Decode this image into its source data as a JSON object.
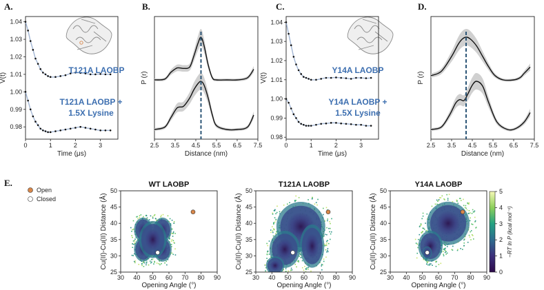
{
  "panel_labels": [
    "A.",
    "B.",
    "C.",
    "D.",
    "E."
  ],
  "colors": {
    "text_blue": "#3d6fb0",
    "dashed": "#2b5576",
    "fit_line": "#111111",
    "band": "#d0d0d0",
    "open_marker": "#d8874a",
    "closed_marker": "#ffffff"
  },
  "legend": {
    "open": "Open",
    "closed": "Closed"
  },
  "colorbar": {
    "label": "−RT ln P (kcal mol⁻¹)",
    "ticks": [
      "0",
      "1",
      "2",
      "3",
      "4",
      "5"
    ],
    "range": [
      0,
      5
    ]
  },
  "chart_data": [
    {
      "id": "A",
      "type": "line",
      "xlabel": "Time (μs)",
      "ylabel": "V(t)",
      "xticks": [
        "0",
        "1",
        "2",
        "3"
      ],
      "yticks": [
        "0.98",
        "0.99",
        "1.00",
        "1.01",
        "1.02",
        "1.03",
        "1.04"
      ],
      "xlim": [
        0,
        3.7
      ],
      "ylim": [
        0.973,
        1.043
      ],
      "series": [
        {
          "name": "T121A LAOBP",
          "x": [
            0,
            0.1,
            0.2,
            0.3,
            0.4,
            0.5,
            0.6,
            0.7,
            0.8,
            0.9,
            1.0,
            1.2,
            1.4,
            1.6,
            1.8,
            2.0,
            2.2,
            2.4,
            2.6,
            2.8,
            3.0,
            3.2,
            3.4
          ],
          "y": [
            1.04,
            1.035,
            1.029,
            1.024,
            1.019,
            1.016,
            1.013,
            1.011,
            1.01,
            1.009,
            1.0085,
            1.0085,
            1.009,
            1.0095,
            1.0105,
            1.011,
            1.0108,
            1.0105,
            1.01,
            1.01,
            1.0102,
            1.01,
            1.01
          ]
        },
        {
          "name": "T121A LAOBP + 1.5X Lysine",
          "x": [
            0,
            0.1,
            0.2,
            0.3,
            0.4,
            0.5,
            0.6,
            0.7,
            0.8,
            0.9,
            1.0,
            1.2,
            1.4,
            1.6,
            1.8,
            2.0,
            2.2,
            2.4,
            2.6,
            2.8,
            3.0,
            3.2,
            3.4
          ],
          "y": [
            1.0,
            0.995,
            0.99,
            0.986,
            0.983,
            0.981,
            0.979,
            0.978,
            0.9775,
            0.977,
            0.977,
            0.9775,
            0.978,
            0.9785,
            0.979,
            0.9795,
            0.98,
            0.9795,
            0.979,
            0.9785,
            0.978,
            0.978,
            0.978
          ]
        }
      ],
      "annotations": [
        "T121A LAOBP",
        "T121A LAOBP +",
        "1.5X Lysine"
      ]
    },
    {
      "id": "B",
      "type": "line",
      "xlabel": "Distance (nm)",
      "ylabel": "P (r)",
      "xticks": [
        "2.5",
        "3.5",
        "4.5",
        "5.5",
        "6.5",
        "7.5"
      ],
      "xlim": [
        2.5,
        7.5
      ],
      "dashed_x": 4.75,
      "series": [
        {
          "name": "T121A LAOBP",
          "x": [
            2.5,
            3.0,
            3.3,
            3.6,
            3.9,
            4.2,
            4.4,
            4.6,
            4.75,
            4.9,
            5.1,
            5.3,
            5.5,
            6.0,
            6.5,
            7.0,
            7.3
          ],
          "y": [
            0.0,
            0.02,
            0.18,
            0.28,
            0.27,
            0.3,
            0.55,
            0.85,
            1.0,
            0.8,
            0.35,
            0.05,
            0.0,
            0.0,
            0.0,
            0.05,
            0.25
          ]
        },
        {
          "name": "T121A LAOBP + 1.5X Lysine",
          "x": [
            2.5,
            3.0,
            3.3,
            3.6,
            3.9,
            4.2,
            4.4,
            4.6,
            4.75,
            4.9,
            5.1,
            5.3,
            5.5,
            6.0,
            6.5,
            7.0,
            7.3
          ],
          "y": [
            0.0,
            0.05,
            0.25,
            0.45,
            0.48,
            0.65,
            0.82,
            0.95,
            1.0,
            0.92,
            0.65,
            0.3,
            0.08,
            0.0,
            0.0,
            0.05,
            0.3
          ]
        }
      ]
    },
    {
      "id": "C",
      "type": "line",
      "xlabel": "Time (μs)",
      "ylabel": "V(t)",
      "xticks": [
        "0",
        "1",
        "2",
        "3"
      ],
      "yticks": [
        "0.98",
        "0.99",
        "1.00",
        "1.01",
        "1.02",
        "1.03",
        "1.04"
      ],
      "xlim": [
        0,
        3.7
      ],
      "ylim": [
        0.979,
        1.043
      ],
      "series": [
        {
          "name": "Y14A LAOBP",
          "x": [
            0,
            0.1,
            0.2,
            0.3,
            0.4,
            0.5,
            0.6,
            0.7,
            0.8,
            0.9,
            1.0,
            1.2,
            1.4,
            1.6,
            1.8,
            2.0,
            2.2,
            2.4,
            2.6,
            2.8,
            3.0,
            3.2,
            3.4
          ],
          "y": [
            1.04,
            1.034,
            1.028,
            1.022,
            1.018,
            1.015,
            1.013,
            1.0115,
            1.011,
            1.0105,
            1.01,
            1.01,
            1.0105,
            1.011,
            1.011,
            1.0112,
            1.011,
            1.0108,
            1.0105,
            1.011,
            1.011,
            1.0108,
            1.011
          ]
        },
        {
          "name": "Y14A LAOBP + 1.5X Lysine",
          "x": [
            0,
            0.1,
            0.2,
            0.3,
            0.4,
            0.5,
            0.6,
            0.7,
            0.8,
            0.9,
            1.0,
            1.2,
            1.4,
            1.6,
            1.8,
            2.0,
            2.2,
            2.4,
            2.6,
            2.8,
            3.0,
            3.2,
            3.4
          ],
          "y": [
            1.0,
            0.998,
            0.995,
            0.992,
            0.99,
            0.988,
            0.987,
            0.9865,
            0.986,
            0.986,
            0.986,
            0.9865,
            0.987,
            0.9872,
            0.9875,
            0.9875,
            0.9872,
            0.987,
            0.9868,
            0.9865,
            0.9865,
            0.986,
            0.986
          ]
        }
      ],
      "annotations": [
        "Y14A LAOBP",
        "Y14A LAOBP +",
        "1.5X Lysine"
      ]
    },
    {
      "id": "D",
      "type": "line",
      "xlabel": "Distance (nm)",
      "ylabel": "P (r)",
      "xticks": [
        "2.5",
        "3.5",
        "4.5",
        "5.5",
        "6.5",
        "7.5"
      ],
      "xlim": [
        2.5,
        7.5
      ],
      "dashed_x": 4.2,
      "series": [
        {
          "name": "Y14A LAOBP",
          "x": [
            2.5,
            3.0,
            3.5,
            3.8,
            4.0,
            4.2,
            4.4,
            4.7,
            5.0,
            5.3,
            5.6,
            6.0,
            6.5,
            6.8,
            7.0,
            7.3
          ],
          "y": [
            0.1,
            0.2,
            0.55,
            0.82,
            0.95,
            1.0,
            0.96,
            0.8,
            0.55,
            0.3,
            0.1,
            0.0,
            0.0,
            0.05,
            0.15,
            0.3
          ]
        },
        {
          "name": "Y14A LAOBP + 1.5X Lysine",
          "x": [
            2.5,
            3.0,
            3.4,
            3.7,
            3.9,
            4.1,
            4.3,
            4.5,
            4.7,
            5.0,
            5.3,
            5.7,
            6.2,
            6.6,
            7.0,
            7.3
          ],
          "y": [
            0.0,
            0.05,
            0.3,
            0.55,
            0.62,
            0.6,
            0.75,
            0.92,
            1.0,
            0.9,
            0.55,
            0.15,
            0.0,
            0.02,
            0.15,
            0.35
          ]
        }
      ]
    },
    {
      "id": "E1",
      "type": "heatmap",
      "title": "WT LAOBP",
      "xlabel": "Opening Angle (°)",
      "ylabel": "Cu(II)-Cu(II) Distance (Å)",
      "xticks": [
        "30",
        "40",
        "50",
        "60",
        "70",
        "80",
        "90"
      ],
      "yticks": [
        "25",
        "30",
        "35",
        "40",
        "45",
        "50"
      ],
      "xlim": [
        30,
        90
      ],
      "ylim": [
        25,
        50
      ],
      "open": [
        75,
        43.5
      ],
      "closed": [
        53,
        31
      ]
    },
    {
      "id": "E2",
      "type": "heatmap",
      "title": "T121A LAOBP",
      "xlabel": "Opening Angle (°)",
      "ylabel": "Cu(II)-Cu(II) Distance (Å)",
      "xticks": [
        "30",
        "40",
        "50",
        "60",
        "70",
        "80",
        "90"
      ],
      "yticks": [
        "25",
        "30",
        "35",
        "40",
        "45",
        "50"
      ],
      "xlim": [
        30,
        90
      ],
      "ylim": [
        25,
        50
      ],
      "open": [
        75,
        43.5
      ],
      "closed": [
        53,
        31
      ]
    },
    {
      "id": "E3",
      "type": "heatmap",
      "title": "Y14A LAOBP",
      "xlabel": "Opening Angle (°)",
      "ylabel": "Cu(II)-Cu(II) Distance (Å)",
      "xticks": [
        "30",
        "40",
        "50",
        "60",
        "70",
        "80",
        "90"
      ],
      "yticks": [
        "25",
        "30",
        "35",
        "40",
        "45",
        "50"
      ],
      "xlim": [
        30,
        90
      ],
      "ylim": [
        25,
        50
      ],
      "open": [
        75,
        43.5
      ],
      "closed": [
        53,
        31
      ]
    }
  ]
}
